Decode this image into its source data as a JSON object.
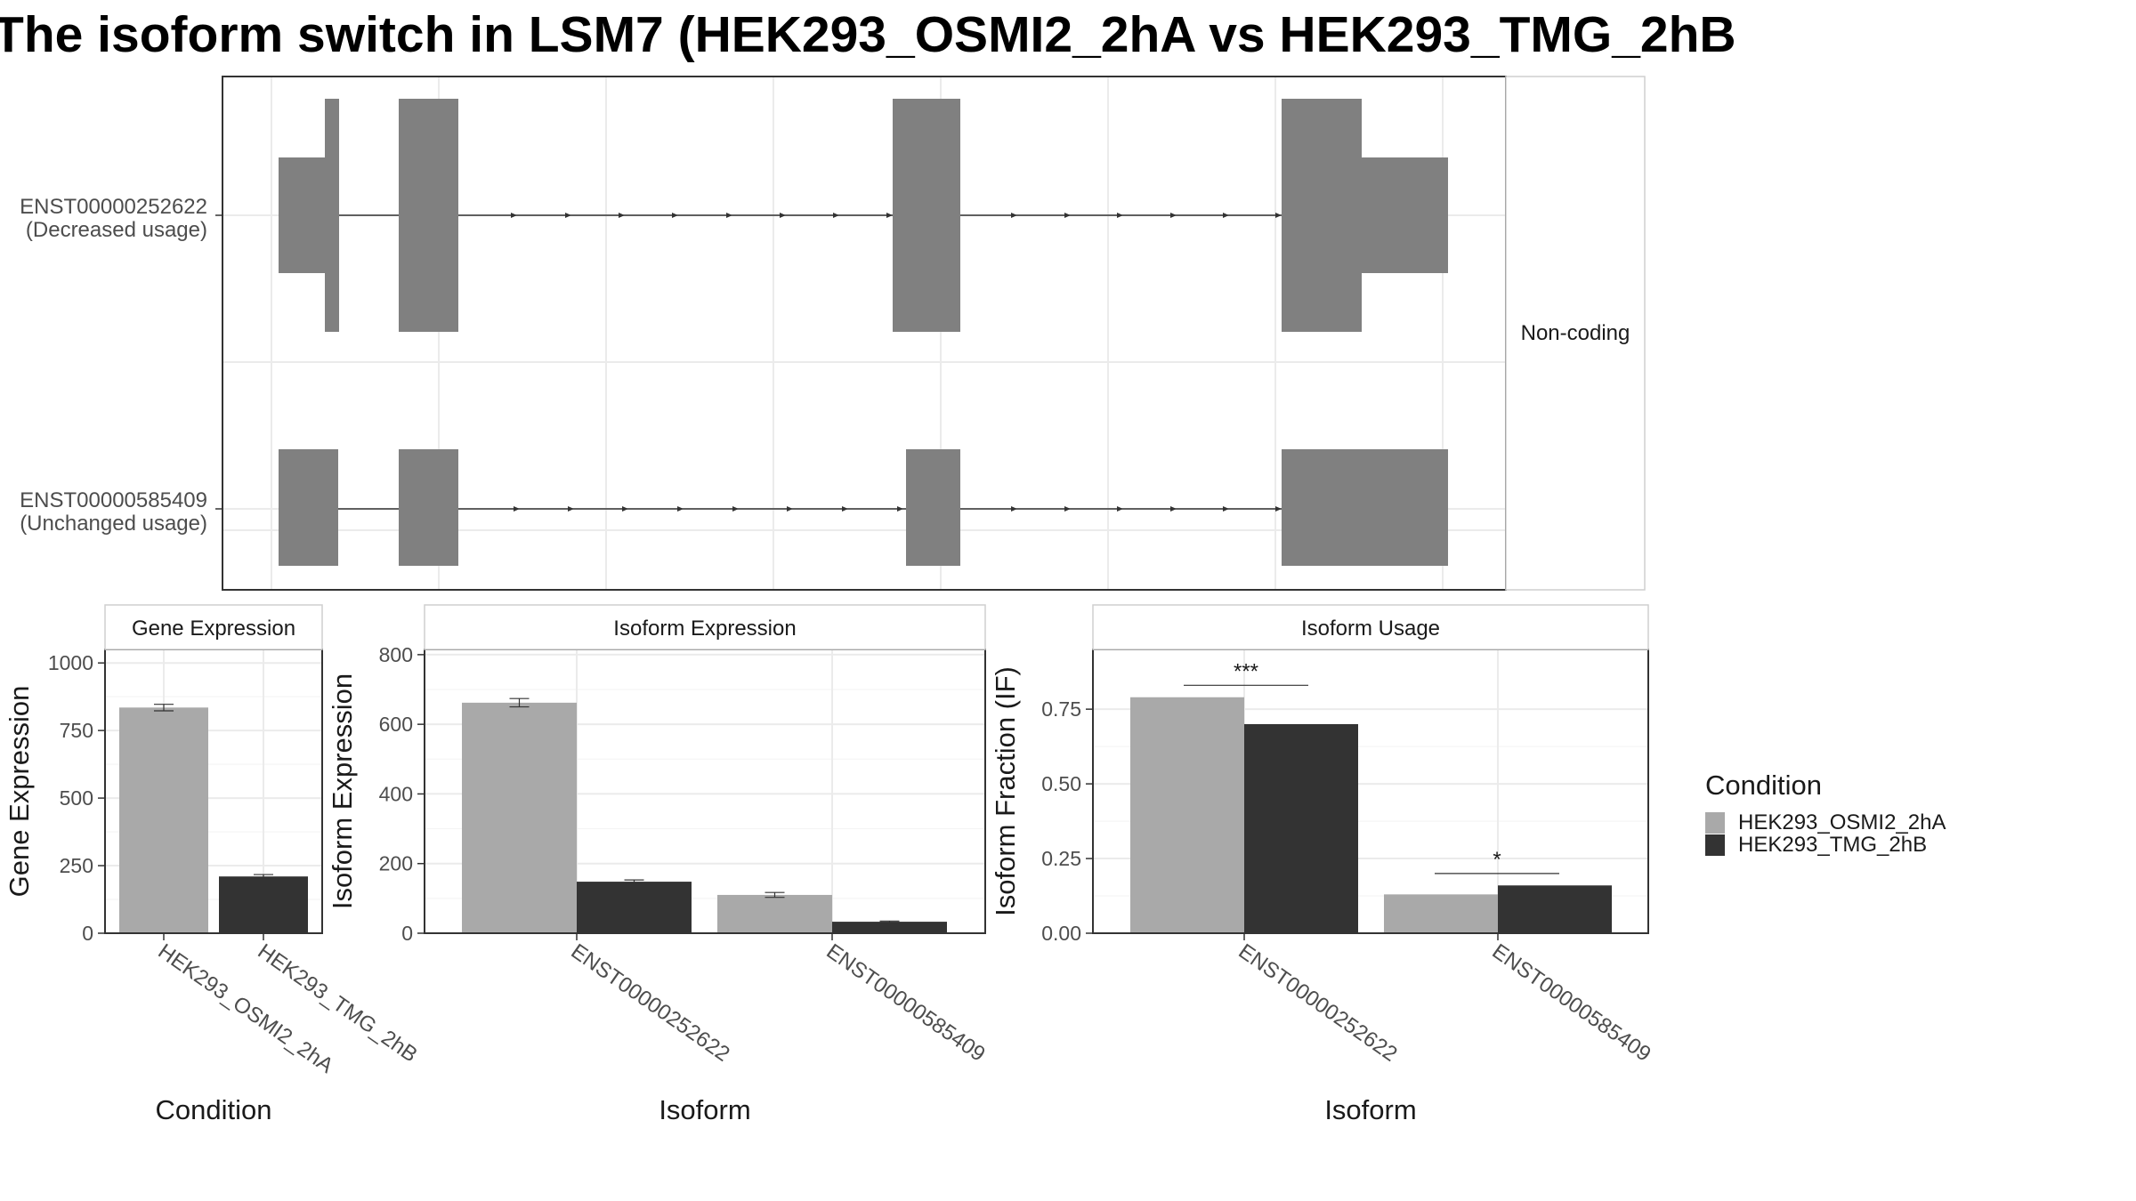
{
  "title": "The isoform switch in LSM7 (HEK293_OSMI2_2hA vs HEK293_TMG_2hB",
  "colors": {
    "condition_a": "#a9a9a9",
    "condition_b": "#333333",
    "exon": "#808080"
  },
  "chart_data": [
    {
      "type": "gene_structure",
      "strip_label": "Non-coding",
      "transcripts": [
        {
          "label_id": "ENST00000252622",
          "label_usage": "(Decreased usage)"
        },
        {
          "label_id": "ENST00000585409",
          "label_usage": "(Unchanged usage)"
        }
      ]
    },
    {
      "type": "bar",
      "panel_title": "Gene Expression",
      "xlabel": "Condition",
      "ylabel": "Gene Expression",
      "ylim": [
        0,
        1050
      ],
      "yticks": [
        0,
        250,
        500,
        750,
        1000
      ],
      "ytick_labels": [
        "0",
        "250",
        "500",
        "750",
        "1000"
      ],
      "categories": [
        "HEK293_OSMI2_2hA",
        "HEK293_TMG_2hB"
      ],
      "values": [
        835,
        210
      ],
      "errors": [
        12,
        7
      ]
    },
    {
      "type": "bar",
      "panel_title": "Isoform Expression",
      "xlabel": "Isoform",
      "ylabel": "Isoform Expression",
      "ylim": [
        0,
        815
      ],
      "yticks": [
        0,
        200,
        400,
        600,
        800
      ],
      "ytick_labels": [
        "0",
        "200",
        "400",
        "600",
        "800"
      ],
      "categories": [
        "ENST00000252622",
        "ENST00000585409"
      ],
      "series": [
        {
          "name": "HEK293_OSMI2_2hA",
          "values": [
            662,
            110
          ],
          "errors": [
            12,
            7
          ]
        },
        {
          "name": "HEK293_TMG_2hB",
          "values": [
            148,
            33
          ],
          "errors": [
            5,
            2
          ]
        }
      ]
    },
    {
      "type": "bar",
      "panel_title": "Isoform Usage",
      "xlabel": "Isoform",
      "ylabel": "Isoform Fraction (IF)",
      "ylim": [
        0,
        0.95
      ],
      "yticks": [
        0,
        0.25,
        0.5,
        0.75
      ],
      "ytick_labels": [
        "0.00",
        "0.25",
        "0.50",
        "0.75"
      ],
      "categories": [
        "ENST00000252622",
        "ENST00000585409"
      ],
      "series": [
        {
          "name": "HEK293_OSMI2_2hA",
          "values": [
            0.79,
            0.13
          ]
        },
        {
          "name": "HEK293_TMG_2hB",
          "values": [
            0.7,
            0.16
          ]
        }
      ],
      "significance": [
        "***",
        "*"
      ]
    }
  ],
  "legend": {
    "title": "Condition",
    "items": [
      {
        "label": "HEK293_OSMI2_2hA",
        "color": "#a9a9a9"
      },
      {
        "label": "HEK293_TMG_2hB",
        "color": "#333333"
      }
    ]
  }
}
